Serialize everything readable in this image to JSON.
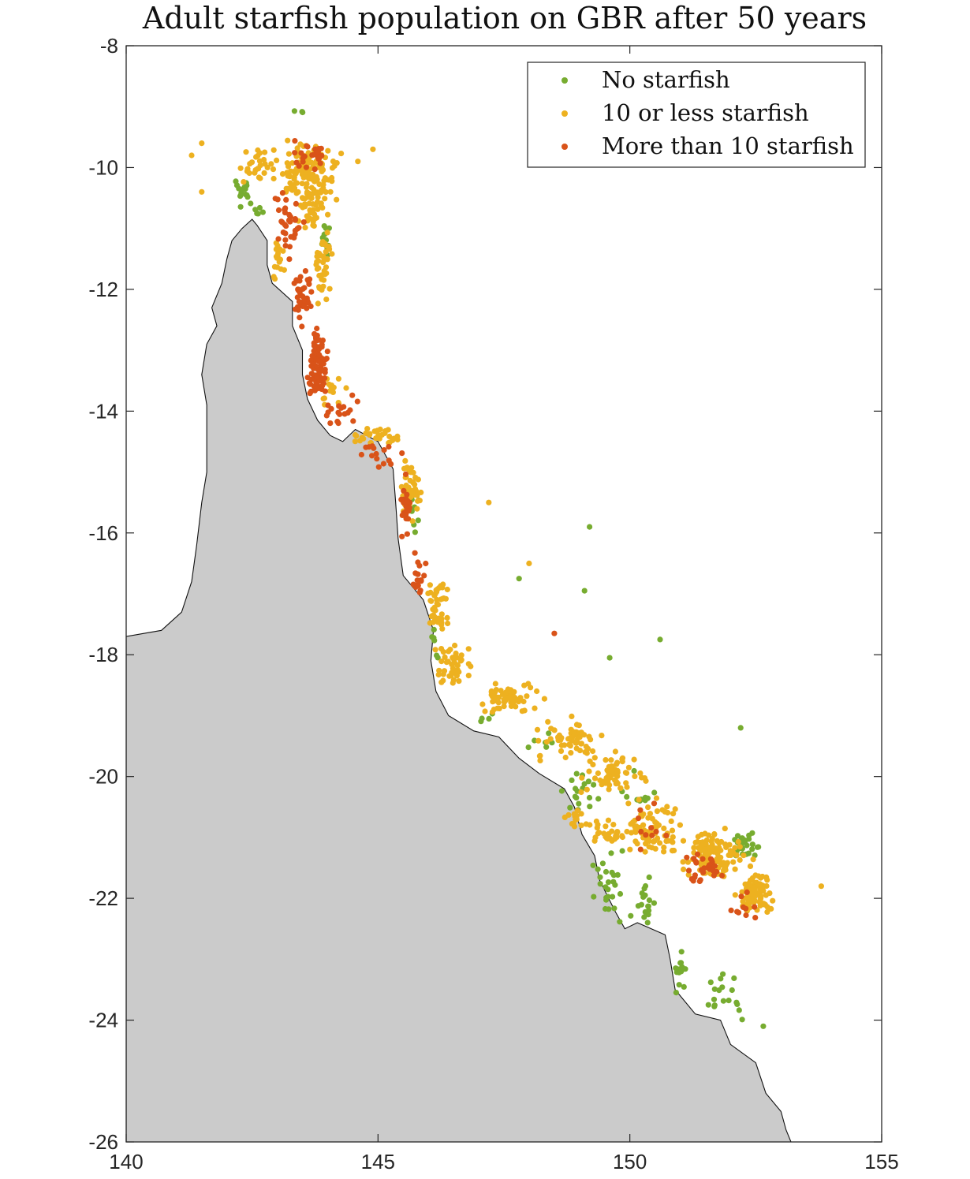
{
  "chart_data": {
    "type": "scatter",
    "title": "Adult starfish population on GBR after 50 years",
    "xlabel": "",
    "ylabel": "",
    "xlim": [
      140,
      155
    ],
    "ylim": [
      -26,
      -8
    ],
    "x_ticks": [
      140,
      145,
      150,
      155
    ],
    "y_ticks": [
      -8,
      -10,
      -12,
      -14,
      -16,
      -18,
      -20,
      -22,
      -24,
      -26
    ],
    "x_tick_labels": [
      "140",
      "145",
      "150",
      "155"
    ],
    "y_tick_labels": [
      "-8",
      "-10",
      "-12",
      "-14",
      "-16",
      "-18",
      "-20",
      "-22",
      "-24",
      "-26"
    ],
    "grid": false,
    "legend_position": "top-right",
    "land_color": "#cbcbcb",
    "coastline": [
      [
        140,
        -17.7
      ],
      [
        140.7,
        -17.6
      ],
      [
        141.1,
        -17.3
      ],
      [
        141.3,
        -16.8
      ],
      [
        141.4,
        -16.2
      ],
      [
        141.5,
        -15.5
      ],
      [
        141.6,
        -15.0
      ],
      [
        141.6,
        -14.5
      ],
      [
        141.6,
        -13.9
      ],
      [
        141.5,
        -13.4
      ],
      [
        141.6,
        -12.9
      ],
      [
        141.8,
        -12.6
      ],
      [
        141.7,
        -12.3
      ],
      [
        141.9,
        -11.9
      ],
      [
        142.0,
        -11.5
      ],
      [
        142.1,
        -11.2
      ],
      [
        142.3,
        -11.0
      ],
      [
        142.5,
        -10.85
      ],
      [
        142.6,
        -10.95
      ],
      [
        142.8,
        -11.2
      ],
      [
        142.8,
        -11.6
      ],
      [
        142.9,
        -11.9
      ],
      [
        143.3,
        -12.2
      ],
      [
        143.3,
        -12.6
      ],
      [
        143.5,
        -13.0
      ],
      [
        143.5,
        -13.4
      ],
      [
        143.6,
        -13.8
      ],
      [
        143.8,
        -14.15
      ],
      [
        144.05,
        -14.4
      ],
      [
        144.3,
        -14.5
      ],
      [
        144.55,
        -14.3
      ],
      [
        145.0,
        -14.5
      ],
      [
        145.3,
        -14.95
      ],
      [
        145.35,
        -15.5
      ],
      [
        145.4,
        -16.1
      ],
      [
        145.5,
        -16.7
      ],
      [
        145.9,
        -17.1
      ],
      [
        146.1,
        -17.6
      ],
      [
        146.05,
        -18.1
      ],
      [
        146.15,
        -18.6
      ],
      [
        146.4,
        -19.0
      ],
      [
        146.9,
        -19.25
      ],
      [
        147.4,
        -19.35
      ],
      [
        147.8,
        -19.7
      ],
      [
        148.2,
        -19.95
      ],
      [
        148.7,
        -20.2
      ],
      [
        148.9,
        -20.5
      ],
      [
        149.05,
        -20.95
      ],
      [
        149.3,
        -21.3
      ],
      [
        149.4,
        -21.7
      ],
      [
        149.7,
        -22.2
      ],
      [
        149.9,
        -22.5
      ],
      [
        150.15,
        -22.4
      ],
      [
        150.7,
        -22.6
      ],
      [
        150.8,
        -23.0
      ],
      [
        150.9,
        -23.5
      ],
      [
        151.3,
        -23.9
      ],
      [
        151.8,
        -24.0
      ],
      [
        152.0,
        -24.4
      ],
      [
        152.5,
        -24.7
      ],
      [
        152.7,
        -25.2
      ],
      [
        153.0,
        -25.5
      ],
      [
        153.1,
        -25.8
      ],
      [
        153.2,
        -26.0
      ],
      [
        140,
        -26.0
      ]
    ],
    "series": [
      {
        "name": "No starfish",
        "color": "#77ac30",
        "clusters": [
          {
            "lon": 142.3,
            "lat": -10.4,
            "n": 14,
            "slon": 0.15,
            "slat": 0.25
          },
          {
            "lon": 142.6,
            "lat": -10.7,
            "n": 6,
            "slon": 0.15,
            "slat": 0.08
          },
          {
            "lon": 143.5,
            "lat": -9.1,
            "n": 3,
            "slon": 0.1,
            "slat": 0.05
          },
          {
            "lon": 143.95,
            "lat": -11.2,
            "n": 14,
            "slon": 0.08,
            "slat": 0.3
          },
          {
            "lon": 145.7,
            "lat": -15.6,
            "n": 8,
            "slon": 0.08,
            "slat": 0.3
          },
          {
            "lon": 146.2,
            "lat": -17.8,
            "n": 6,
            "slon": 0.12,
            "slat": 0.2
          },
          {
            "lon": 147.2,
            "lat": -19.1,
            "n": 4,
            "slon": 0.25,
            "slat": 0.1
          },
          {
            "lon": 148.2,
            "lat": -19.4,
            "n": 6,
            "slon": 0.3,
            "slat": 0.15
          },
          {
            "lon": 149.0,
            "lat": -20.3,
            "n": 18,
            "slon": 0.3,
            "slat": 0.3
          },
          {
            "lon": 149.6,
            "lat": -21.7,
            "n": 26,
            "slon": 0.25,
            "slat": 0.45
          },
          {
            "lon": 150.3,
            "lat": -22.1,
            "n": 18,
            "slon": 0.18,
            "slat": 0.3
          },
          {
            "lon": 151.0,
            "lat": -23.2,
            "n": 14,
            "slon": 0.12,
            "slat": 0.25
          },
          {
            "lon": 151.9,
            "lat": -23.6,
            "n": 18,
            "slon": 0.35,
            "slat": 0.3
          },
          {
            "lon": 152.3,
            "lat": -21.15,
            "n": 30,
            "slon": 0.2,
            "slat": 0.15
          },
          {
            "lon": 150.3,
            "lat": -20.3,
            "n": 10,
            "slon": 0.3,
            "slat": 0.35
          }
        ],
        "points": [
          [
            149.2,
            -15.9
          ],
          [
            149.1,
            -16.95
          ],
          [
            147.8,
            -16.75
          ],
          [
            149.6,
            -18.05
          ],
          [
            150.6,
            -17.75
          ],
          [
            152.2,
            -19.2
          ],
          [
            152.65,
            -24.1
          ]
        ]
      },
      {
        "name": "10 or less starfish",
        "color": "#edb120",
        "clusters": [
          {
            "lon": 143.6,
            "lat": -10.1,
            "n": 130,
            "slon": 0.45,
            "slat": 0.35
          },
          {
            "lon": 142.6,
            "lat": -10.0,
            "n": 30,
            "slon": 0.35,
            "slat": 0.3
          },
          {
            "lon": 143.7,
            "lat": -10.7,
            "n": 40,
            "slon": 0.2,
            "slat": 0.25
          },
          {
            "lon": 143.9,
            "lat": -11.6,
            "n": 40,
            "slon": 0.15,
            "slat": 0.45
          },
          {
            "lon": 143.0,
            "lat": -11.5,
            "n": 18,
            "slon": 0.1,
            "slat": 0.3
          },
          {
            "lon": 144.1,
            "lat": -13.7,
            "n": 14,
            "slon": 0.2,
            "slat": 0.3
          },
          {
            "lon": 145.0,
            "lat": -14.4,
            "n": 30,
            "slon": 0.3,
            "slat": 0.12
          },
          {
            "lon": 145.65,
            "lat": -15.3,
            "n": 50,
            "slon": 0.15,
            "slat": 0.45
          },
          {
            "lon": 146.2,
            "lat": -17.2,
            "n": 40,
            "slon": 0.2,
            "slat": 0.4
          },
          {
            "lon": 146.5,
            "lat": -18.2,
            "n": 45,
            "slon": 0.3,
            "slat": 0.3
          },
          {
            "lon": 147.6,
            "lat": -18.7,
            "n": 60,
            "slon": 0.45,
            "slat": 0.22
          },
          {
            "lon": 148.8,
            "lat": -19.4,
            "n": 60,
            "slon": 0.55,
            "slat": 0.22
          },
          {
            "lon": 149.7,
            "lat": -20.0,
            "n": 60,
            "slon": 0.5,
            "slat": 0.28
          },
          {
            "lon": 150.5,
            "lat": -20.8,
            "n": 70,
            "slon": 0.4,
            "slat": 0.35
          },
          {
            "lon": 151.6,
            "lat": -21.3,
            "n": 120,
            "slon": 0.5,
            "slat": 0.3
          },
          {
            "lon": 152.5,
            "lat": -21.9,
            "n": 90,
            "slon": 0.25,
            "slat": 0.25
          },
          {
            "lon": 149.5,
            "lat": -20.9,
            "n": 30,
            "slon": 0.4,
            "slat": 0.2
          },
          {
            "lon": 148.9,
            "lat": -20.7,
            "n": 14,
            "slon": 0.2,
            "slat": 0.15
          }
        ],
        "points": [
          [
            141.3,
            -9.8
          ],
          [
            141.5,
            -9.6
          ],
          [
            141.5,
            -10.4
          ],
          [
            144.9,
            -9.7
          ],
          [
            144.6,
            -9.9
          ],
          [
            147.2,
            -15.5
          ],
          [
            148.0,
            -16.5
          ],
          [
            153.8,
            -21.8
          ]
        ]
      },
      {
        "name": "More than 10 starfish",
        "color": "#d95319",
        "clusters": [
          {
            "lon": 143.7,
            "lat": -9.8,
            "n": 25,
            "slon": 0.3,
            "slat": 0.2
          },
          {
            "lon": 143.2,
            "lat": -10.9,
            "n": 35,
            "slon": 0.2,
            "slat": 0.4
          },
          {
            "lon": 143.5,
            "lat": -12.1,
            "n": 40,
            "slon": 0.18,
            "slat": 0.4
          },
          {
            "lon": 143.8,
            "lat": -13.2,
            "n": 80,
            "slon": 0.15,
            "slat": 0.45
          },
          {
            "lon": 144.3,
            "lat": -14.0,
            "n": 18,
            "slon": 0.3,
            "slat": 0.2
          },
          {
            "lon": 145.0,
            "lat": -14.7,
            "n": 15,
            "slon": 0.3,
            "slat": 0.2
          },
          {
            "lon": 145.55,
            "lat": -15.6,
            "n": 25,
            "slon": 0.12,
            "slat": 0.4
          },
          {
            "lon": 145.8,
            "lat": -16.7,
            "n": 18,
            "slon": 0.12,
            "slat": 0.3
          },
          {
            "lon": 150.4,
            "lat": -20.8,
            "n": 10,
            "slon": 0.35,
            "slat": 0.3
          },
          {
            "lon": 151.5,
            "lat": -21.5,
            "n": 30,
            "slon": 0.3,
            "slat": 0.2
          },
          {
            "lon": 152.3,
            "lat": -22.1,
            "n": 10,
            "slon": 0.25,
            "slat": 0.25
          }
        ],
        "points": [
          [
            148.5,
            -17.65
          ]
        ]
      }
    ]
  }
}
